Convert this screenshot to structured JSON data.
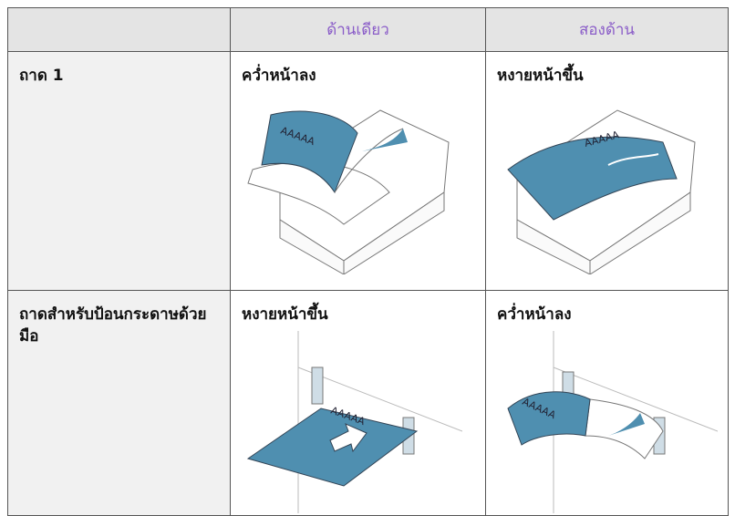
{
  "table": {
    "header": [
      "ด้านเดียว",
      "สองด้าน"
    ],
    "rows": [
      [
        "ถาด 1",
        "คว่ำหน้าลง",
        "หงายหน้าขึ้น"
      ],
      [
        "ถาดสำหรับป้อนกระดาษด้วยมือ",
        "หงายหน้าขึ้น",
        "คว่ำหน้าลง"
      ]
    ],
    "paper_label": "AAAAA"
  }
}
